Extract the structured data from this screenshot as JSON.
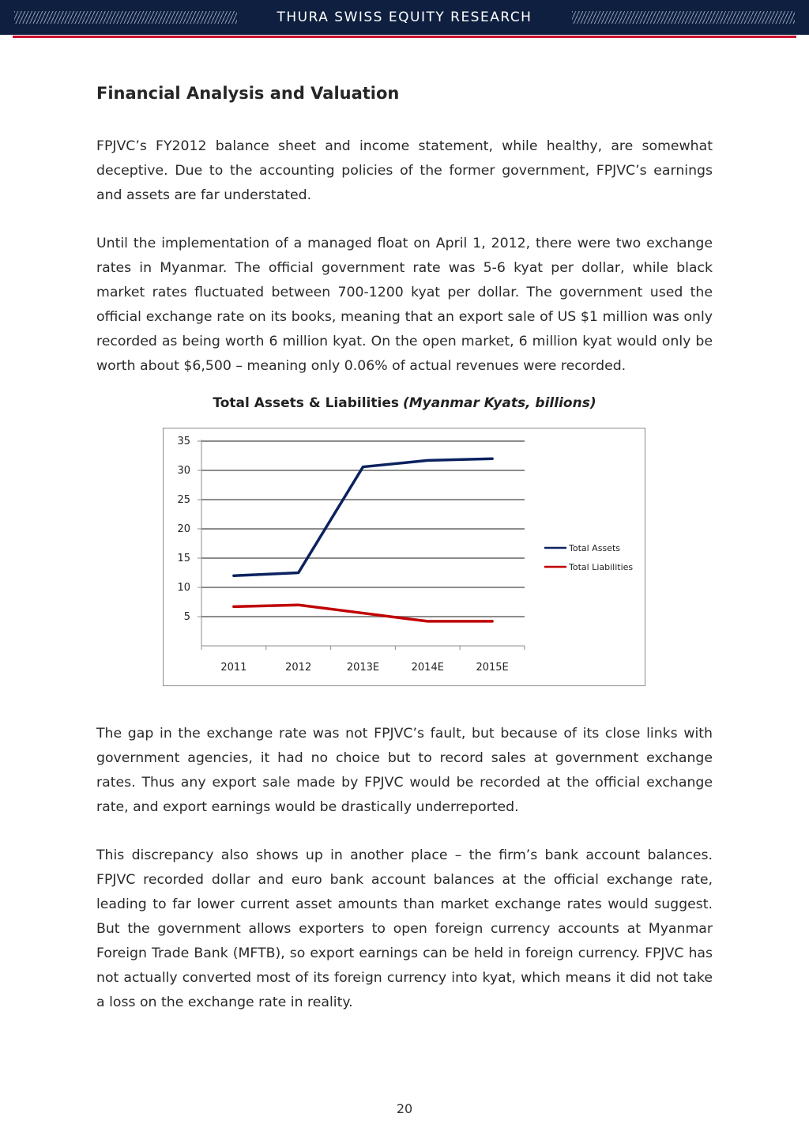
{
  "header": {
    "title": "THURA SWISS EQUITY RESEARCH",
    "colors": {
      "band": "#0e1f3f",
      "accent": "#c8102e"
    }
  },
  "section_title": "Financial Analysis and Valuation",
  "paragraphs": [
    "FPJVC’s FY2012 balance sheet and income statement, while healthy, are somewhat deceptive. Due to the accounting policies of the former government, FPJVC’s earnings and assets are far understated.",
    "Until the implementation of a managed float on April 1, 2012, there were two exchange rates in Myanmar. The official government rate was 5-6 kyat per dollar, while black market rates fluctuated between 700-1200 kyat per dollar. The government used the official exchange rate on its books, meaning that an export sale of US $1 million was only recorded as being worth 6 million kyat. On the open market, 6 million kyat would only be worth about $6,500 – meaning only 0.06% of actual revenues were recorded.",
    "The gap in the exchange rate was not FPJVC’s fault, but because of its close links with government agencies, it had no choice but to record sales at government exchange rates. Thus any export sale made by FPJVC would be recorded at the official exchange rate, and export earnings would be drastically underreported.",
    "This discrepancy also shows up in another place – the firm’s bank account balances. FPJVC recorded dollar and euro bank account balances at the official exchange rate, leading to far lower current asset amounts than market exchange rates would suggest. But the government allows exporters to open foreign currency accounts at Myanmar Foreign Trade Bank (MFTB), so export earnings can be held in foreign currency. FPJVC has not actually converted most of its foreign currency into kyat, which means it did not take a loss on the exchange rate in reality."
  ],
  "chart_data": {
    "type": "line",
    "title": "Total Assets & Liabilities",
    "subtitle": "(Myanmar Kyats, billions)",
    "categories": [
      "2011",
      "2012",
      "2013E",
      "2014E",
      "2015E"
    ],
    "series": [
      {
        "name": "Total Assets",
        "color": "#0b2260",
        "values": [
          12.0,
          12.5,
          30.6,
          31.7,
          32.0
        ]
      },
      {
        "name": "Total Liabilities",
        "color": "#c00000",
        "values": [
          6.7,
          7.0,
          5.6,
          4.2,
          4.2
        ]
      }
    ],
    "yticks": [
      "5",
      "10",
      "15",
      "20",
      "25",
      "30",
      "35"
    ],
    "ylim": [
      0,
      35
    ],
    "grid": true,
    "legend": "right"
  },
  "page_number": "20"
}
